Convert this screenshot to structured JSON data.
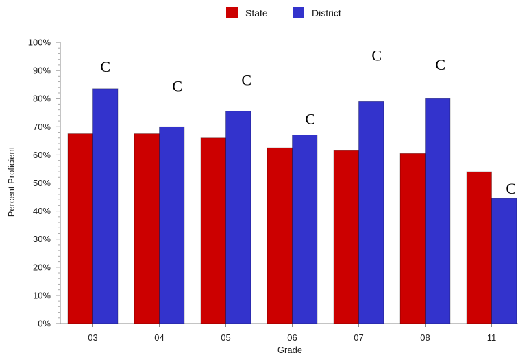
{
  "chart_data": {
    "type": "bar",
    "categories": [
      "03",
      "04",
      "05",
      "06",
      "07",
      "08",
      "11"
    ],
    "series": [
      {
        "name": "State",
        "color": "#cc0000",
        "values": [
          67.5,
          67.5,
          66,
          62.5,
          61.5,
          60.5,
          54
        ]
      },
      {
        "name": "District",
        "color": "#3333cc",
        "values": [
          83.5,
          70,
          75.5,
          67,
          79,
          80,
          44.5
        ]
      }
    ],
    "annotations": [
      "C",
      "C",
      "C",
      "C",
      "C",
      "C",
      "C"
    ],
    "xlabel": "Grade",
    "ylabel": "Percent Proficient",
    "ylim": [
      0,
      100
    ],
    "yticks": [
      "0%",
      "10%",
      "20%",
      "30%",
      "40%",
      "50%",
      "60%",
      "70%",
      "80%",
      "90%",
      "100%"
    ],
    "grid": false,
    "legend": "top"
  }
}
